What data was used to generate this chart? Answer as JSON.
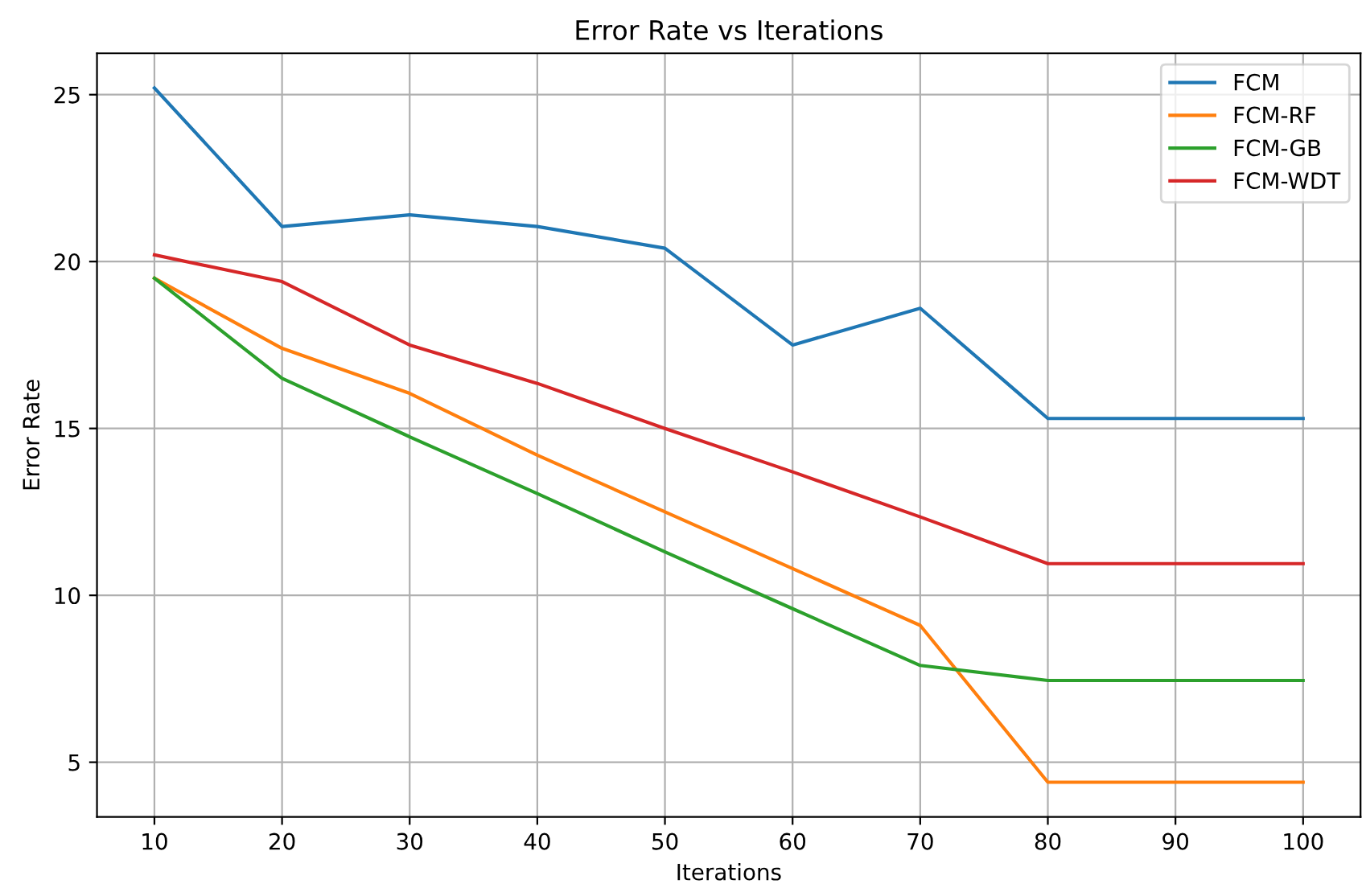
{
  "chart_data": {
    "type": "line",
    "title": "Error Rate vs Iterations",
    "xlabel": "Iterations",
    "ylabel": "Error Rate",
    "x": [
      10,
      20,
      30,
      40,
      50,
      60,
      70,
      80,
      90,
      100
    ],
    "series": [
      {
        "name": "FCM",
        "color": "#1f77b4",
        "values": [
          25.2,
          21.05,
          21.4,
          21.05,
          20.4,
          17.5,
          18.6,
          15.3,
          15.3,
          15.3
        ]
      },
      {
        "name": "FCM-RF",
        "color": "#ff7f0e",
        "values": [
          19.5,
          17.4,
          16.05,
          14.2,
          12.5,
          10.8,
          9.1,
          4.4,
          4.4,
          4.4
        ]
      },
      {
        "name": "FCM-GB",
        "color": "#2ca02c",
        "values": [
          19.5,
          16.5,
          14.75,
          13.05,
          11.3,
          9.6,
          7.9,
          7.45,
          7.45,
          7.45
        ]
      },
      {
        "name": "FCM-WDT",
        "color": "#d62728",
        "values": [
          20.2,
          19.4,
          17.5,
          16.35,
          15.0,
          13.7,
          12.35,
          10.95,
          10.95,
          10.95
        ]
      }
    ],
    "xlim": [
      5.5,
      104.5
    ],
    "xticks": [
      10,
      20,
      30,
      40,
      50,
      60,
      70,
      80,
      90,
      100
    ],
    "ylim": [
      3.36,
      26.24
    ],
    "yticks": [
      5,
      10,
      15,
      20,
      25
    ],
    "grid": true,
    "legend": "top right",
    "marker": "none",
    "line_style": "solid"
  }
}
